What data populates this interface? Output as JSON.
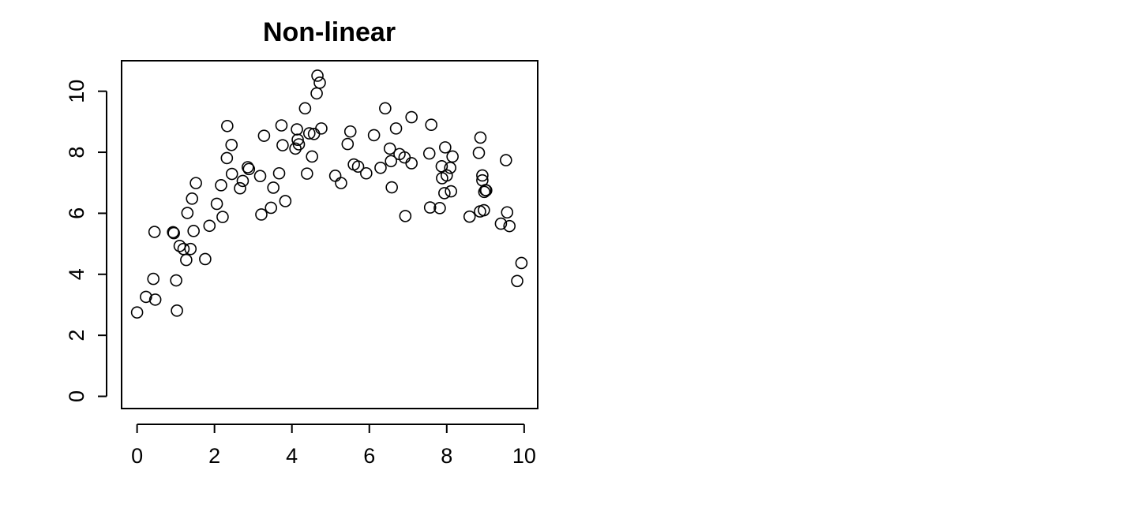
{
  "chart_data": {
    "type": "scatter",
    "title": "Non-linear",
    "xlabel": "",
    "ylabel": "",
    "xlim": [
      -0.4,
      10.35
    ],
    "ylim": [
      -0.4,
      11.0
    ],
    "xticks": [
      0,
      2,
      4,
      6,
      8,
      10
    ],
    "yticks": [
      0,
      2,
      4,
      6,
      8,
      10
    ],
    "xtick_labels": [
      "0",
      "2",
      "4",
      "6",
      "8",
      "10"
    ],
    "ytick_labels": [
      "0",
      "2",
      "4",
      "6",
      "8",
      "10"
    ],
    "grid": false,
    "legend": "none",
    "colors": {
      "points": "#000000",
      "axes": "#000000",
      "background": "#ffffff"
    },
    "x": [
      0.0,
      0.23,
      0.42,
      0.45,
      0.47,
      0.93,
      0.95,
      1.01,
      1.03,
      1.1,
      1.2,
      1.27,
      1.3,
      1.38,
      1.42,
      1.46,
      1.52,
      1.76,
      1.87,
      2.06,
      2.17,
      2.21,
      2.32,
      2.33,
      2.44,
      2.45,
      2.66,
      2.73,
      2.86,
      2.89,
      3.18,
      3.21,
      3.28,
      3.46,
      3.52,
      3.67,
      3.73,
      3.76,
      3.83,
      4.09,
      4.13,
      4.15,
      4.18,
      4.34,
      4.39,
      4.45,
      4.52,
      4.57,
      4.64,
      4.66,
      4.72,
      4.76,
      5.12,
      5.27,
      5.44,
      5.51,
      5.6,
      5.71,
      5.92,
      6.12,
      6.29,
      6.41,
      6.53,
      6.56,
      6.58,
      6.69,
      6.78,
      6.91,
      6.93,
      7.09,
      7.09,
      7.55,
      7.57,
      7.6,
      7.82,
      7.87,
      7.88,
      7.94,
      7.96,
      8.0,
      8.09,
      8.11,
      8.15,
      8.59,
      8.83,
      8.86,
      8.87,
      8.92,
      8.92,
      8.96,
      8.97,
      9.0,
      9.02,
      9.4,
      9.53,
      9.56,
      9.62,
      9.82,
      9.93
    ],
    "y": [
      2.75,
      3.26,
      3.85,
      5.39,
      3.17,
      5.38,
      5.35,
      3.8,
      2.81,
      4.93,
      4.83,
      4.47,
      6.01,
      4.83,
      6.48,
      5.42,
      6.99,
      4.5,
      5.59,
      6.31,
      6.92,
      5.88,
      7.81,
      8.86,
      8.24,
      7.29,
      6.82,
      7.06,
      7.51,
      7.45,
      7.22,
      5.96,
      8.54,
      6.18,
      6.84,
      7.31,
      8.88,
      8.23,
      6.4,
      8.12,
      8.75,
      8.41,
      8.26,
      9.44,
      7.3,
      8.62,
      7.86,
      8.6,
      9.93,
      10.51,
      10.28,
      8.78,
      7.23,
      6.99,
      8.27,
      8.68,
      7.6,
      7.53,
      7.31,
      8.56,
      7.49,
      9.44,
      8.12,
      7.71,
      6.85,
      8.78,
      7.94,
      7.83,
      5.91,
      9.15,
      7.64,
      7.96,
      6.19,
      8.9,
      6.17,
      7.54,
      7.15,
      6.66,
      8.16,
      7.24,
      7.49,
      6.72,
      7.86,
      5.89,
      7.98,
      6.06,
      8.48,
      7.24,
      7.08,
      6.1,
      6.7,
      6.76,
      6.75,
      5.66,
      7.74,
      6.03,
      5.58,
      3.78,
      4.37
    ]
  }
}
